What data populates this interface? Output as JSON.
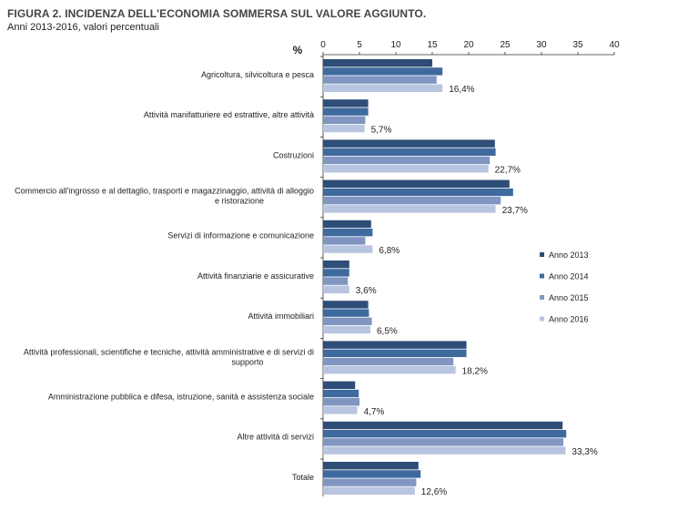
{
  "title": "FIGURA 2. INCIDENZA DELL'ECONOMIA SOMMERSA SUL VALORE AGGIUNTO.",
  "subtitle": "Anni 2013-2016, valori percentuali",
  "chart_data": {
    "type": "bar",
    "orientation": "horizontal",
    "title": "FIGURA 2. INCIDENZA DELL'ECONOMIA SOMMERSA SUL VALORE AGGIUNTO.",
    "subtitle": "Anni 2013-2016, valori percentuali",
    "unit_label": "%",
    "xlim": [
      0,
      40
    ],
    "xticks": [
      0,
      5,
      10,
      15,
      20,
      25,
      30,
      35,
      40
    ],
    "grid": false,
    "legend_position": "right",
    "categories": [
      [
        "Agricoltura, silvicoltura e pesca"
      ],
      [
        "Attività manifatturiere ed estrattive, altre attività"
      ],
      [
        "Costruzioni"
      ],
      [
        "Commercio all'ingrosso e al dettaglio, trasporti e magazzinaggio, attività di alloggio",
        "e ristorazione"
      ],
      [
        "Servizi di informazione e comunicazione"
      ],
      [
        "Attività finanziarie e assicurative"
      ],
      [
        "Attività immobiliari"
      ],
      [
        "Attività professionali, scientifiche e tecniche, attività amministrative e di servizi di",
        "supporto"
      ],
      [
        "Amministrazione pubblica e difesa, istruzione, sanità e assistenza sociale"
      ],
      [
        "Altre attività di servizi"
      ],
      [
        "Totale"
      ]
    ],
    "series": [
      {
        "name": "Anno 2013",
        "color": "#2e4d77",
        "values": [
          15.0,
          6.2,
          23.6,
          25.6,
          6.6,
          3.6,
          6.2,
          19.7,
          4.4,
          32.9,
          13.1
        ]
      },
      {
        "name": "Anno 2014",
        "color": "#3f6a9e",
        "values": [
          16.4,
          6.2,
          23.7,
          26.1,
          6.8,
          3.6,
          6.3,
          19.7,
          4.9,
          33.4,
          13.4
        ]
      },
      {
        "name": "Anno 2015",
        "color": "#8096c0",
        "values": [
          15.6,
          5.8,
          22.9,
          24.4,
          5.8,
          3.4,
          6.7,
          17.9,
          5.0,
          33.0,
          12.8
        ]
      },
      {
        "name": "Anno 2016",
        "color": "#b8c5e0",
        "values": [
          16.4,
          5.7,
          22.7,
          23.7,
          6.8,
          3.6,
          6.5,
          18.2,
          4.7,
          33.3,
          12.6
        ]
      }
    ],
    "data_labels": [
      "16,4%",
      "5,7%",
      "22,7%",
      "23,7%",
      "6,8%",
      "3,6%",
      "6,5%",
      "18,2%",
      "4,7%",
      "33,3%",
      "12,6%"
    ]
  }
}
